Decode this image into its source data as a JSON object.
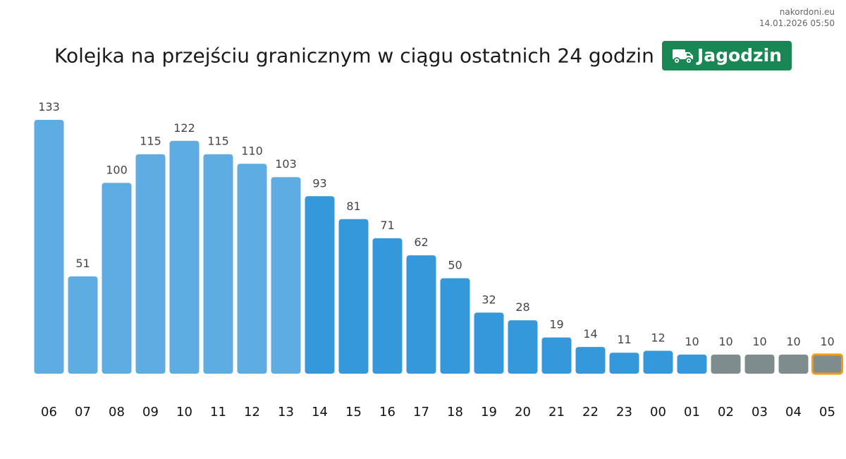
{
  "header": {
    "source": "nakordoni.eu",
    "timestamp": "14.01.2026 05:50",
    "title": "Kolejka na przejściu granicznym w ciągu ostatnich 24 godzin",
    "crossing": "Jagodzin",
    "crossing_icon": "truck-icon",
    "badge_color": "#198754"
  },
  "chart_data": {
    "type": "bar",
    "title": "Kolejka na przejściu granicznym w ciągu ostatnich 24 godzin",
    "categories": [
      "06",
      "07",
      "08",
      "09",
      "10",
      "11",
      "12",
      "13",
      "14",
      "15",
      "16",
      "17",
      "18",
      "19",
      "20",
      "21",
      "22",
      "23",
      "00",
      "01",
      "02",
      "03",
      "04",
      "05"
    ],
    "values": [
      133,
      51,
      100,
      115,
      122,
      115,
      110,
      103,
      93,
      81,
      71,
      62,
      50,
      32,
      28,
      19,
      14,
      11,
      12,
      10,
      10,
      10,
      10,
      10
    ],
    "groups": [
      "light",
      "light",
      "light",
      "light",
      "light",
      "light",
      "light",
      "light",
      "medium",
      "medium",
      "medium",
      "medium",
      "medium",
      "medium",
      "medium",
      "medium",
      "medium",
      "medium",
      "medium",
      "medium",
      "gray",
      "gray",
      "gray",
      "gray"
    ],
    "colors": {
      "light": "#5dade2",
      "medium": "#3498db",
      "gray": "#7f8c8d",
      "highlight_border": "#f39c12"
    },
    "highlight_index": 23,
    "ylim": [
      0,
      133
    ],
    "grid": false,
    "xlabel": "",
    "ylabel": ""
  }
}
